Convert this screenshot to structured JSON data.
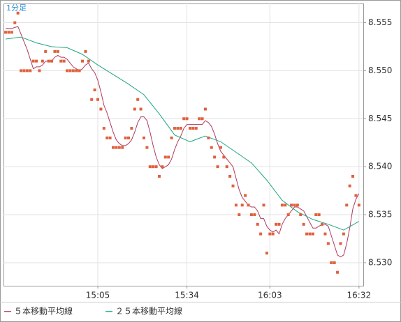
{
  "chart_data": {
    "type": "line",
    "title": "1分足",
    "x": [
      0,
      1,
      2,
      3,
      4,
      5,
      6,
      7,
      8,
      9,
      10,
      11,
      12,
      13,
      14,
      15,
      16,
      17,
      18,
      19,
      20,
      21,
      22,
      23,
      24,
      25,
      26,
      27,
      28,
      29,
      30,
      31,
      32,
      33,
      34,
      35,
      36,
      37,
      38,
      39,
      40,
      41,
      42,
      43,
      44,
      45,
      46,
      47,
      48,
      49,
      50,
      51,
      52,
      53,
      54,
      55,
      56,
      57,
      58,
      59,
      60,
      61,
      62,
      63,
      64,
      65,
      66,
      67,
      68,
      69,
      70,
      71,
      72,
      73,
      74,
      75,
      76,
      77,
      78,
      79,
      80,
      81,
      82,
      83,
      84,
      85,
      86,
      87,
      88,
      89,
      90,
      91,
      92,
      93,
      94,
      95,
      96,
      97,
      98,
      99,
      100,
      101,
      102,
      103,
      104,
      105,
      106,
      107,
      108,
      109,
      110,
      111,
      112,
      113,
      114,
      115
    ],
    "points": {
      "color": "#e0603c",
      "values": [
        8.554,
        8.554,
        8.554,
        8.555,
        8.556,
        8.55,
        8.55,
        8.55,
        8.55,
        8.551,
        8.551,
        8.55,
        8.551,
        8.552,
        8.551,
        8.551,
        8.552,
        8.552,
        8.551,
        8.551,
        8.55,
        8.55,
        8.55,
        8.55,
        8.55,
        8.551,
        8.552,
        8.551,
        8.547,
        8.548,
        8.547,
        8.546,
        8.544,
        8.543,
        8.543,
        8.542,
        8.542,
        8.542,
        8.542,
        8.543,
        8.543,
        8.544,
        8.546,
        8.547,
        8.546,
        8.543,
        8.542,
        8.54,
        8.54,
        8.54,
        8.539,
        8.54,
        8.541,
        8.541,
        8.543,
        8.544,
        8.544,
        8.544,
        8.545,
        8.545,
        8.544,
        8.544,
        8.544,
        8.545,
        8.545,
        8.546,
        8.543,
        8.542,
        8.541,
        8.54,
        8.542,
        8.541,
        8.54,
        8.539,
        8.538,
        8.536,
        8.535,
        8.536,
        8.537,
        8.536,
        8.535,
        8.535,
        8.534,
        8.533,
        8.536,
        8.531,
        8.533,
        8.533,
        8.534,
        8.534,
        8.536,
        8.536,
        8.535,
        8.536,
        8.536,
        8.536,
        8.535,
        8.534,
        8.533,
        8.533,
        8.533,
        8.535,
        8.535,
        8.534,
        8.533,
        8.532,
        8.53,
        8.53,
        8.529,
        8.532,
        8.533,
        8.536,
        8.538,
        8.539,
        8.537,
        8.536
      ]
    },
    "series": [
      {
        "name": "５本移動平均線",
        "color": "#b03a5a",
        "values": [
          8.5544,
          8.5544,
          8.5544,
          8.5545,
          8.5546,
          8.5538,
          8.553,
          8.5522,
          8.5512,
          8.5502,
          8.5504,
          8.5504,
          8.5506,
          8.551,
          8.551,
          8.551,
          8.5514,
          8.5516,
          8.5514,
          8.5514,
          8.5512,
          8.5508,
          8.5504,
          8.5502,
          8.55,
          8.5502,
          8.5506,
          8.5508,
          8.5502,
          8.5498,
          8.549,
          8.5478,
          8.5464,
          8.5456,
          8.5446,
          8.5436,
          8.5428,
          8.5424,
          8.5422,
          8.5422,
          8.5424,
          8.5428,
          8.5436,
          8.5446,
          8.5452,
          8.5452,
          8.5448,
          8.5436,
          8.5422,
          8.541,
          8.5402,
          8.5398,
          8.54,
          8.5402,
          8.5408,
          8.5418,
          8.5426,
          8.5432,
          8.544,
          8.5444,
          8.5444,
          8.5444,
          8.5444,
          8.5444,
          8.5444,
          8.5448,
          8.5446,
          8.5442,
          8.5434,
          8.5424,
          8.5416,
          8.5412,
          8.5408,
          8.5404,
          8.54,
          8.5388,
          8.5376,
          8.5368,
          8.5364,
          8.536,
          8.5358,
          8.5358,
          8.5354,
          8.5346,
          8.5346,
          8.5338,
          8.5334,
          8.5332,
          8.5334,
          8.533,
          8.534,
          8.5346,
          8.535,
          8.5354,
          8.5358,
          8.5358,
          8.5356,
          8.5354,
          8.5348,
          8.5342,
          8.5336,
          8.5336,
          8.5338,
          8.534,
          8.534,
          8.5338,
          8.5328,
          8.5318,
          8.5308,
          8.5306,
          8.5308,
          8.532,
          8.5336,
          8.5356,
          8.5366,
          8.5372
        ]
      },
      {
        "name": "２５本移動平均線",
        "color": "#1fa584",
        "x": [
          0,
          5,
          10,
          15,
          20,
          25,
          30,
          35,
          40,
          45,
          50,
          55,
          60,
          65,
          70,
          75,
          80,
          85,
          90,
          95,
          100,
          105,
          110,
          115
        ],
        "values": [
          8.5533,
          8.5535,
          8.5529,
          8.5525,
          8.5524,
          8.5517,
          8.5506,
          8.5496,
          8.5486,
          8.5475,
          8.5455,
          8.5433,
          8.5426,
          8.5432,
          8.5426,
          8.5415,
          8.5404,
          8.5386,
          8.5365,
          8.5353,
          8.5345,
          8.534,
          8.5334,
          8.5343
        ]
      }
    ],
    "xlim": [
      -0.7,
      116.4
    ],
    "xticks": [
      {
        "value": 30,
        "label": "15:05"
      },
      {
        "value": 59,
        "label": "15:34"
      },
      {
        "value": 86,
        "label": "16:03"
      },
      {
        "value": 115,
        "label": "16:32"
      }
    ],
    "ylim": [
      8.5276,
      8.557
    ],
    "yticks": [
      {
        "value": 8.53,
        "label": "8.530"
      },
      8.535,
      {
        "value": 8.54,
        "label": "8.540"
      },
      8.545,
      {
        "value": 8.55,
        "label": "8.550"
      },
      8.555
    ],
    "grid": true
  }
}
